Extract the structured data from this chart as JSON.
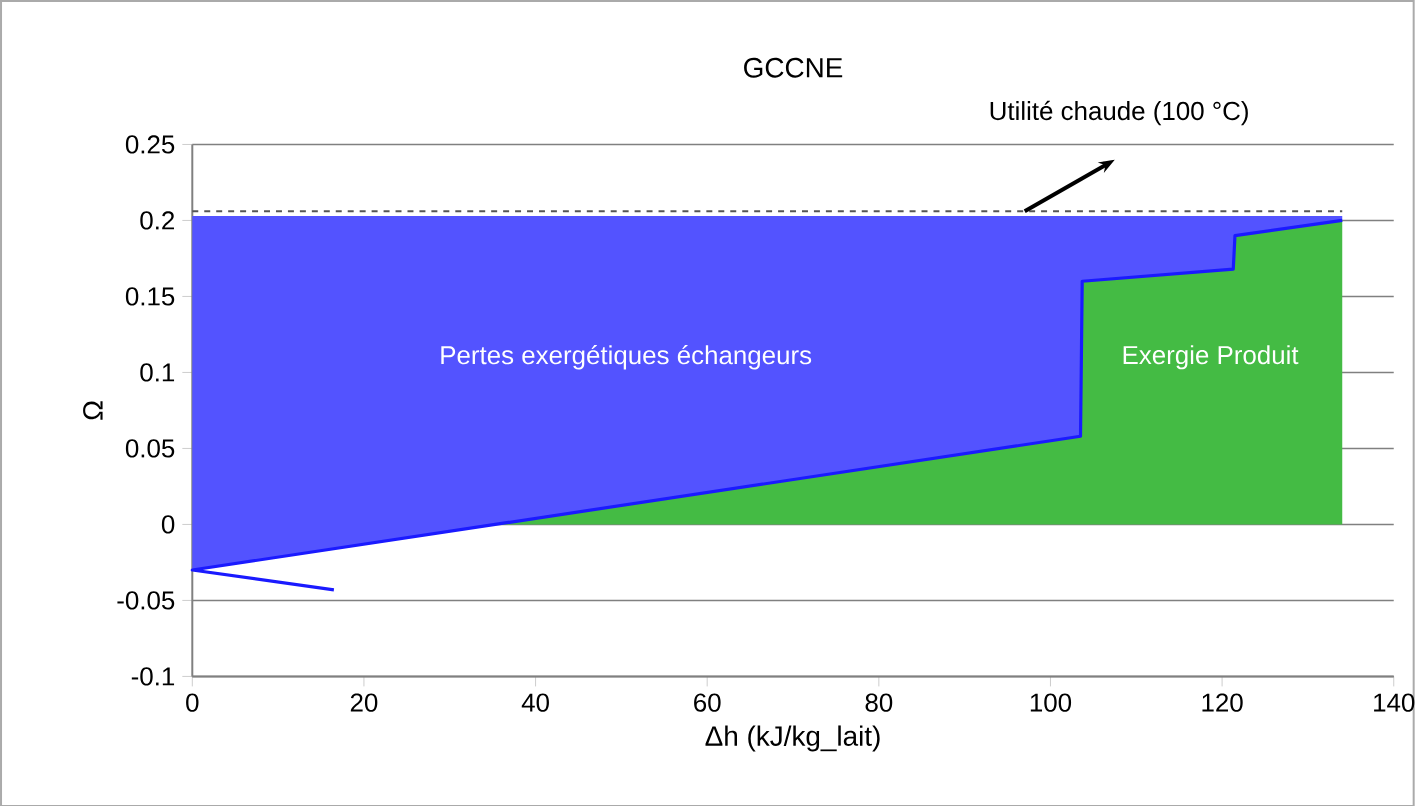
{
  "chart_data": {
    "type": "area",
    "title": "GCCNE",
    "xlabel": "Δh (kJ/kg_lait)",
    "ylabel": "Ω",
    "series": [
      {
        "type": "line",
        "color": "#1a1aff",
        "x": [
          16.5,
          0,
          35.3,
          103.5,
          103.7,
          121.3,
          121.5,
          134
        ],
        "values": [
          -0.043,
          -0.03,
          0,
          0.058,
          0.16,
          0.168,
          0.19,
          0.2
        ],
        "lower": [
          null,
          -0.03,
          0,
          0.058,
          0.16,
          0.168,
          0.19,
          0.2
        ],
        "upper": [
          null,
          0.203,
          0.203,
          0.203,
          0.203,
          0.203,
          0.203,
          0.203
        ]
      },
      {
        "color": "#44bb44",
        "x": [
          35.3,
          103.5,
          103.7,
          121.3,
          121.5,
          134
        ],
        "values": [
          0,
          0.058,
          0.16,
          0.168,
          0.19,
          0.2
        ]
      }
    ],
    "ref_lines": [
      {
        "axis": "y",
        "value": 0.206,
        "line_style": "dashed",
        "color": "#555555"
      }
    ],
    "annotations": [
      "Pertes exergétiques échangeurs",
      "Exergie Produit",
      "Utilité chaude (100 °C)"
    ],
    "xlim": [
      0,
      140
    ],
    "xticks": [
      0,
      20,
      40,
      60,
      80,
      100,
      120,
      140
    ],
    "ylim": [
      -0.1,
      0.25
    ],
    "yticks": [
      -0.1,
      -0.05,
      0,
      0.05,
      0.1,
      0.15,
      0.2,
      0.25
    ],
    "grid": "y",
    "line_style": "solid",
    "marker": "none"
  }
}
